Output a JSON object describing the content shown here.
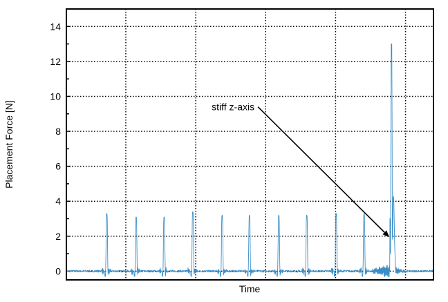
{
  "chart_data": {
    "type": "line",
    "title": "",
    "xlabel": "Time",
    "ylabel": "Placement Force [N]",
    "ylim": [
      -0.5,
      15
    ],
    "yticks": [
      0,
      2,
      4,
      6,
      8,
      10,
      12,
      14
    ],
    "xlim": [
      -0.85,
      4.4
    ],
    "grid": true,
    "line_color": "#3a8ec8",
    "series": [
      {
        "peaks": [
          {
            "x": -0.28,
            "y": 3.3
          },
          {
            "x": 0.14,
            "y": 3.1
          },
          {
            "x": 0.54,
            "y": 3.1
          },
          {
            "x": 0.95,
            "y": 3.4
          },
          {
            "x": 1.37,
            "y": 3.2
          },
          {
            "x": 1.76,
            "y": 3.2
          },
          {
            "x": 2.18,
            "y": 3.2
          },
          {
            "x": 2.58,
            "y": 3.2
          },
          {
            "x": 3.0,
            "y": 3.3
          },
          {
            "x": 3.4,
            "y": 3.3
          },
          {
            "x": 3.81,
            "y": 13.0
          }
        ],
        "baseline": 0
      }
    ],
    "annotations": [
      {
        "text": "stiff z-axis",
        "text_at": [
          1.89,
          9.4
        ],
        "arrow_to": [
          3.77,
          1.94
        ]
      }
    ]
  }
}
